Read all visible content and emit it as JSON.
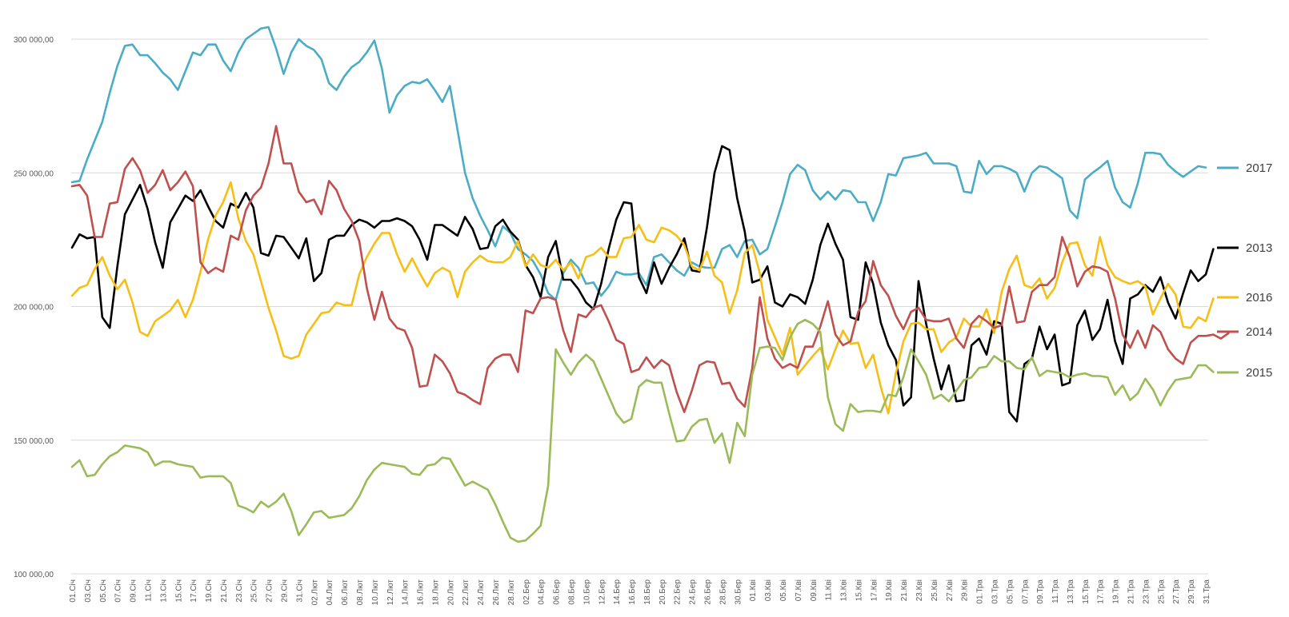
{
  "chart_data": {
    "type": "line",
    "title": "",
    "xlabel": "",
    "ylabel": "",
    "ylim": [
      100000,
      300000
    ],
    "yticks": [
      100000,
      150000,
      200000,
      250000,
      300000
    ],
    "ytick_labels": [
      "100 000,00",
      "150 000,00",
      "200 000,00",
      "250 000,00",
      "300 000,00"
    ],
    "grid": true,
    "legend": "right (labels at line ends)",
    "x_tick_labels": [
      "01.Січ",
      "03.Січ",
      "05.Січ",
      "07.Січ",
      "09.Січ",
      "11.Січ",
      "13.Січ",
      "15.Січ",
      "17.Січ",
      "19.Січ",
      "21.Січ",
      "23.Січ",
      "25.Січ",
      "27.Січ",
      "29.Січ",
      "31.Січ",
      "02.Лют",
      "04.Лют",
      "06.Лют",
      "08.Лют",
      "10.Лют",
      "12.Лют",
      "14.Лют",
      "16.Лют",
      "18.Лют",
      "20.Лют",
      "22.Лют",
      "24.Лют",
      "26.Лют",
      "28.Лют",
      "02.Бер",
      "04.Бер",
      "06.Бер",
      "08.Бер",
      "10.Бер",
      "12.Бер",
      "14.Бер",
      "16.Бер",
      "18.Бер",
      "20.Бер",
      "22.Бер",
      "24.Бер",
      "26.Бер",
      "28.Бер",
      "30.Бер",
      "01.Кві",
      "03.Кві",
      "05.Кві",
      "07.Кві",
      "09.Кві",
      "11.Кві",
      "13.Кві",
      "15.Кві",
      "17.Кві",
      "19.Кві",
      "21.Кві",
      "23.Кві",
      "25.Кві",
      "27.Кві",
      "29.Кві",
      "01.Тра",
      "03.Тра",
      "05.Тра",
      "07.Тра",
      "09.Тра",
      "11.Тра",
      "13.Тра",
      "15.Тра",
      "17.Тра",
      "19.Тра",
      "21.Тра",
      "23.Тра",
      "25.Тра",
      "27.Тра",
      "29.Тра",
      "31.Тра"
    ],
    "series": [
      {
        "name": "2017",
        "color": "#4bacc6",
        "values": [
          246500,
          247000,
          255000,
          262000,
          269000,
          280000,
          290000,
          297500,
          298000,
          294000,
          294000,
          291000,
          287500,
          285000,
          281000,
          288000,
          295000,
          294000,
          298000,
          298000,
          292000,
          288000,
          295000,
          300000,
          302000,
          304000,
          304500,
          296500,
          287000,
          295000,
          300000,
          297500,
          296000,
          292500,
          283500,
          281000,
          286000,
          289500,
          291500,
          295000,
          299500,
          289000,
          272500,
          279000,
          282500,
          284000,
          283500,
          285000,
          281000,
          276500,
          282500,
          266000,
          250000,
          240500,
          234000,
          228500,
          222500,
          230000,
          227500,
          221500,
          219500,
          217000,
          212000,
          205000,
          202500,
          212500,
          217500,
          214500,
          208500,
          209000,
          204000,
          207500,
          213000,
          212000,
          212000,
          212500,
          208000,
          218500,
          219500,
          216500,
          213500,
          211500,
          216500,
          215000,
          214500,
          214500,
          221500,
          223000,
          218500,
          224500,
          225000,
          219500,
          221500,
          230000,
          239000,
          249500,
          253000,
          251000,
          243500,
          240000,
          243000,
          240000,
          243500,
          243000,
          239000,
          239000,
          232000,
          239000,
          249500,
          249000,
          255500,
          256000,
          256500,
          257500,
          253500,
          253500,
          253500,
          252500,
          243000,
          242500,
          254500,
          249500,
          252500,
          252500,
          251500,
          250000,
          243000,
          250000,
          252500,
          252000,
          250000,
          248000,
          236000,
          233000,
          247500,
          250000,
          252000,
          254500,
          244500,
          239000,
          237000,
          246000,
          257500,
          257500,
          257000,
          253000,
          250500,
          248500,
          250500,
          252500,
          252000
        ]
      },
      {
        "name": "2013",
        "color": "#000000",
        "values": [
          222000,
          227000,
          225500,
          226000,
          196000,
          192000,
          215000,
          234500,
          240000,
          245500,
          236500,
          224000,
          214500,
          231500,
          236500,
          241500,
          239500,
          243500,
          237500,
          232000,
          229500,
          238500,
          237000,
          242500,
          237000,
          220000,
          219000,
          226500,
          226000,
          222000,
          218000,
          225500,
          209500,
          212500,
          225000,
          226500,
          226500,
          230500,
          232500,
          231500,
          229500,
          232000,
          232000,
          233000,
          232000,
          230000,
          225000,
          217500,
          230500,
          230500,
          228500,
          226500,
          233500,
          229000,
          221500,
          222000,
          230000,
          232500,
          228000,
          225000,
          215500,
          211000,
          203500,
          218500,
          224500,
          210000,
          210000,
          206500,
          201500,
          199000,
          208500,
          221500,
          232500,
          239000,
          238500,
          211000,
          205000,
          216500,
          208500,
          214500,
          219500,
          225500,
          213500,
          213000,
          229500,
          250000,
          260000,
          258500,
          240500,
          228000,
          209000,
          210000,
          215000,
          201500,
          200000,
          204500,
          203500,
          201000,
          210000,
          223000,
          231000,
          223500,
          217500,
          196000,
          195000,
          216500,
          208500,
          194000,
          185500,
          180000,
          163000,
          166000,
          209500,
          193500,
          180500,
          169000,
          178000,
          164500,
          165000,
          185500,
          188000,
          182000,
          194500,
          193500,
          160500,
          157000,
          178500,
          180500,
          192500,
          184000,
          189500,
          170500,
          171500,
          193000,
          198500,
          187500,
          191500,
          202500,
          187000,
          178500,
          203000,
          204500,
          208000,
          205500,
          211000,
          201500,
          195500,
          205000,
          213500,
          209500,
          212000,
          221500
        ]
      },
      {
        "name": "2016",
        "color": "#f7be16",
        "values": [
          204000,
          207000,
          208000,
          214000,
          218500,
          211500,
          206500,
          210000,
          201500,
          190500,
          189000,
          194500,
          196500,
          198500,
          202500,
          196000,
          202500,
          213000,
          225000,
          234000,
          239000,
          246500,
          233000,
          224500,
          219500,
          209500,
          199500,
          191000,
          181500,
          180500,
          181500,
          189500,
          193500,
          197500,
          198000,
          201500,
          200500,
          200500,
          212000,
          218500,
          223500,
          227500,
          227500,
          219500,
          213000,
          218000,
          212500,
          207500,
          212500,
          214500,
          213000,
          203500,
          213000,
          216500,
          219000,
          217000,
          216500,
          216500,
          218500,
          224500,
          215000,
          219500,
          215500,
          214500,
          217500,
          213500,
          216500,
          210500,
          218500,
          219500,
          222000,
          218500,
          218500,
          225500,
          226000,
          230500,
          225000,
          224000,
          229500,
          228500,
          226500,
          223000,
          215000,
          213500,
          220500,
          211500,
          209000,
          197500,
          206000,
          220000,
          223000,
          212500,
          195000,
          188500,
          182000,
          192000,
          174500,
          178000,
          181500,
          184500,
          176500,
          184000,
          191000,
          186000,
          186500,
          177000,
          182000,
          170000,
          160000,
          175000,
          187000,
          193500,
          194000,
          191500,
          191500,
          183000,
          186500,
          188500,
          195500,
          192500,
          192500,
          199000,
          190000,
          205500,
          214000,
          219000,
          208000,
          207000,
          210500,
          203000,
          207000,
          216500,
          223500,
          224000,
          215500,
          211500,
          226000,
          215500,
          211000,
          209500,
          208500,
          209500,
          207500,
          197000,
          203000,
          208500,
          204500,
          192500,
          192000,
          196000,
          194500,
          203000
        ]
      },
      {
        "name": "2014",
        "color": "#c0504d",
        "values": [
          245000,
          245500,
          241500,
          226000,
          226000,
          238500,
          239000,
          251500,
          255500,
          251000,
          242500,
          245500,
          251000,
          243500,
          246500,
          250500,
          245000,
          216500,
          212500,
          214500,
          213000,
          226500,
          225000,
          236000,
          241500,
          244500,
          253500,
          267500,
          253500,
          253500,
          243000,
          239000,
          240000,
          234500,
          247000,
          243500,
          236500,
          232000,
          224500,
          207000,
          195000,
          205500,
          195500,
          192000,
          191000,
          184500,
          170000,
          170500,
          182000,
          179500,
          175000,
          168000,
          167000,
          165000,
          163500,
          177000,
          180500,
          182000,
          182000,
          175500,
          198500,
          197500,
          203000,
          203500,
          202500,
          191000,
          183000,
          197000,
          196000,
          199500,
          200500,
          194500,
          187500,
          186000,
          175500,
          176500,
          181000,
          177000,
          180000,
          178000,
          168000,
          160500,
          168500,
          178000,
          179500,
          179000,
          171000,
          171500,
          165500,
          162500,
          177000,
          203500,
          188000,
          180500,
          177000,
          178500,
          177000,
          185000,
          185000,
          192500,
          202000,
          189500,
          185500,
          187000,
          198000,
          202000,
          217000,
          208000,
          204000,
          196500,
          191500,
          198000,
          199500,
          195000,
          194500,
          194500,
          195500,
          188000,
          184500,
          193500,
          196500,
          194500,
          192000,
          193000,
          207500,
          194000,
          194500,
          205500,
          208000,
          208000,
          211000,
          226000,
          218500,
          207500,
          213000,
          215000,
          214500,
          213000,
          203000,
          189500,
          184500,
          191000,
          184500,
          193000,
          190500,
          184000,
          180500,
          178500,
          186500,
          189000,
          189000,
          189500,
          188000,
          190000
        ]
      },
      {
        "name": "2015",
        "color": "#9bbb59",
        "values": [
          140000,
          142500,
          136500,
          137000,
          141000,
          144000,
          145500,
          148000,
          147500,
          147000,
          145500,
          140500,
          142000,
          142000,
          141000,
          140500,
          140000,
          136000,
          136500,
          136500,
          136500,
          134000,
          125500,
          124500,
          123000,
          127000,
          125000,
          127000,
          130000,
          123500,
          114500,
          118500,
          123000,
          123500,
          121000,
          121500,
          122000,
          124500,
          129000,
          135000,
          139000,
          141500,
          141000,
          140500,
          140000,
          137500,
          137000,
          140500,
          141000,
          143500,
          143000,
          138000,
          133000,
          134500,
          133000,
          131500,
          126000,
          119500,
          113500,
          112000,
          112500,
          115000,
          118000,
          133000,
          184000,
          179000,
          174500,
          179000,
          182000,
          179500,
          173000,
          166500,
          160000,
          156500,
          158000,
          170000,
          172500,
          171500,
          171500,
          160000,
          149500,
          150000,
          155000,
          157500,
          158000,
          149000,
          152500,
          141500,
          156500,
          151500,
          174500,
          184500,
          185000,
          184500,
          180000,
          188500,
          193500,
          195000,
          193500,
          190500,
          166000,
          156000,
          153500,
          163500,
          160500,
          161000,
          161000,
          160500,
          167000,
          166500,
          173500,
          184000,
          179500,
          174500,
          165500,
          167000,
          164500,
          168500,
          172500,
          173500,
          177000,
          177500,
          181500,
          179500,
          179500,
          177000,
          176500,
          181000,
          174000,
          176000,
          175500,
          175000,
          173500,
          174500,
          175000,
          174000,
          174000,
          173500,
          167000,
          170500,
          165000,
          167500,
          173000,
          169000,
          163000,
          168500,
          172500,
          173000,
          173500,
          178000,
          178000,
          175500
        ]
      }
    ]
  }
}
